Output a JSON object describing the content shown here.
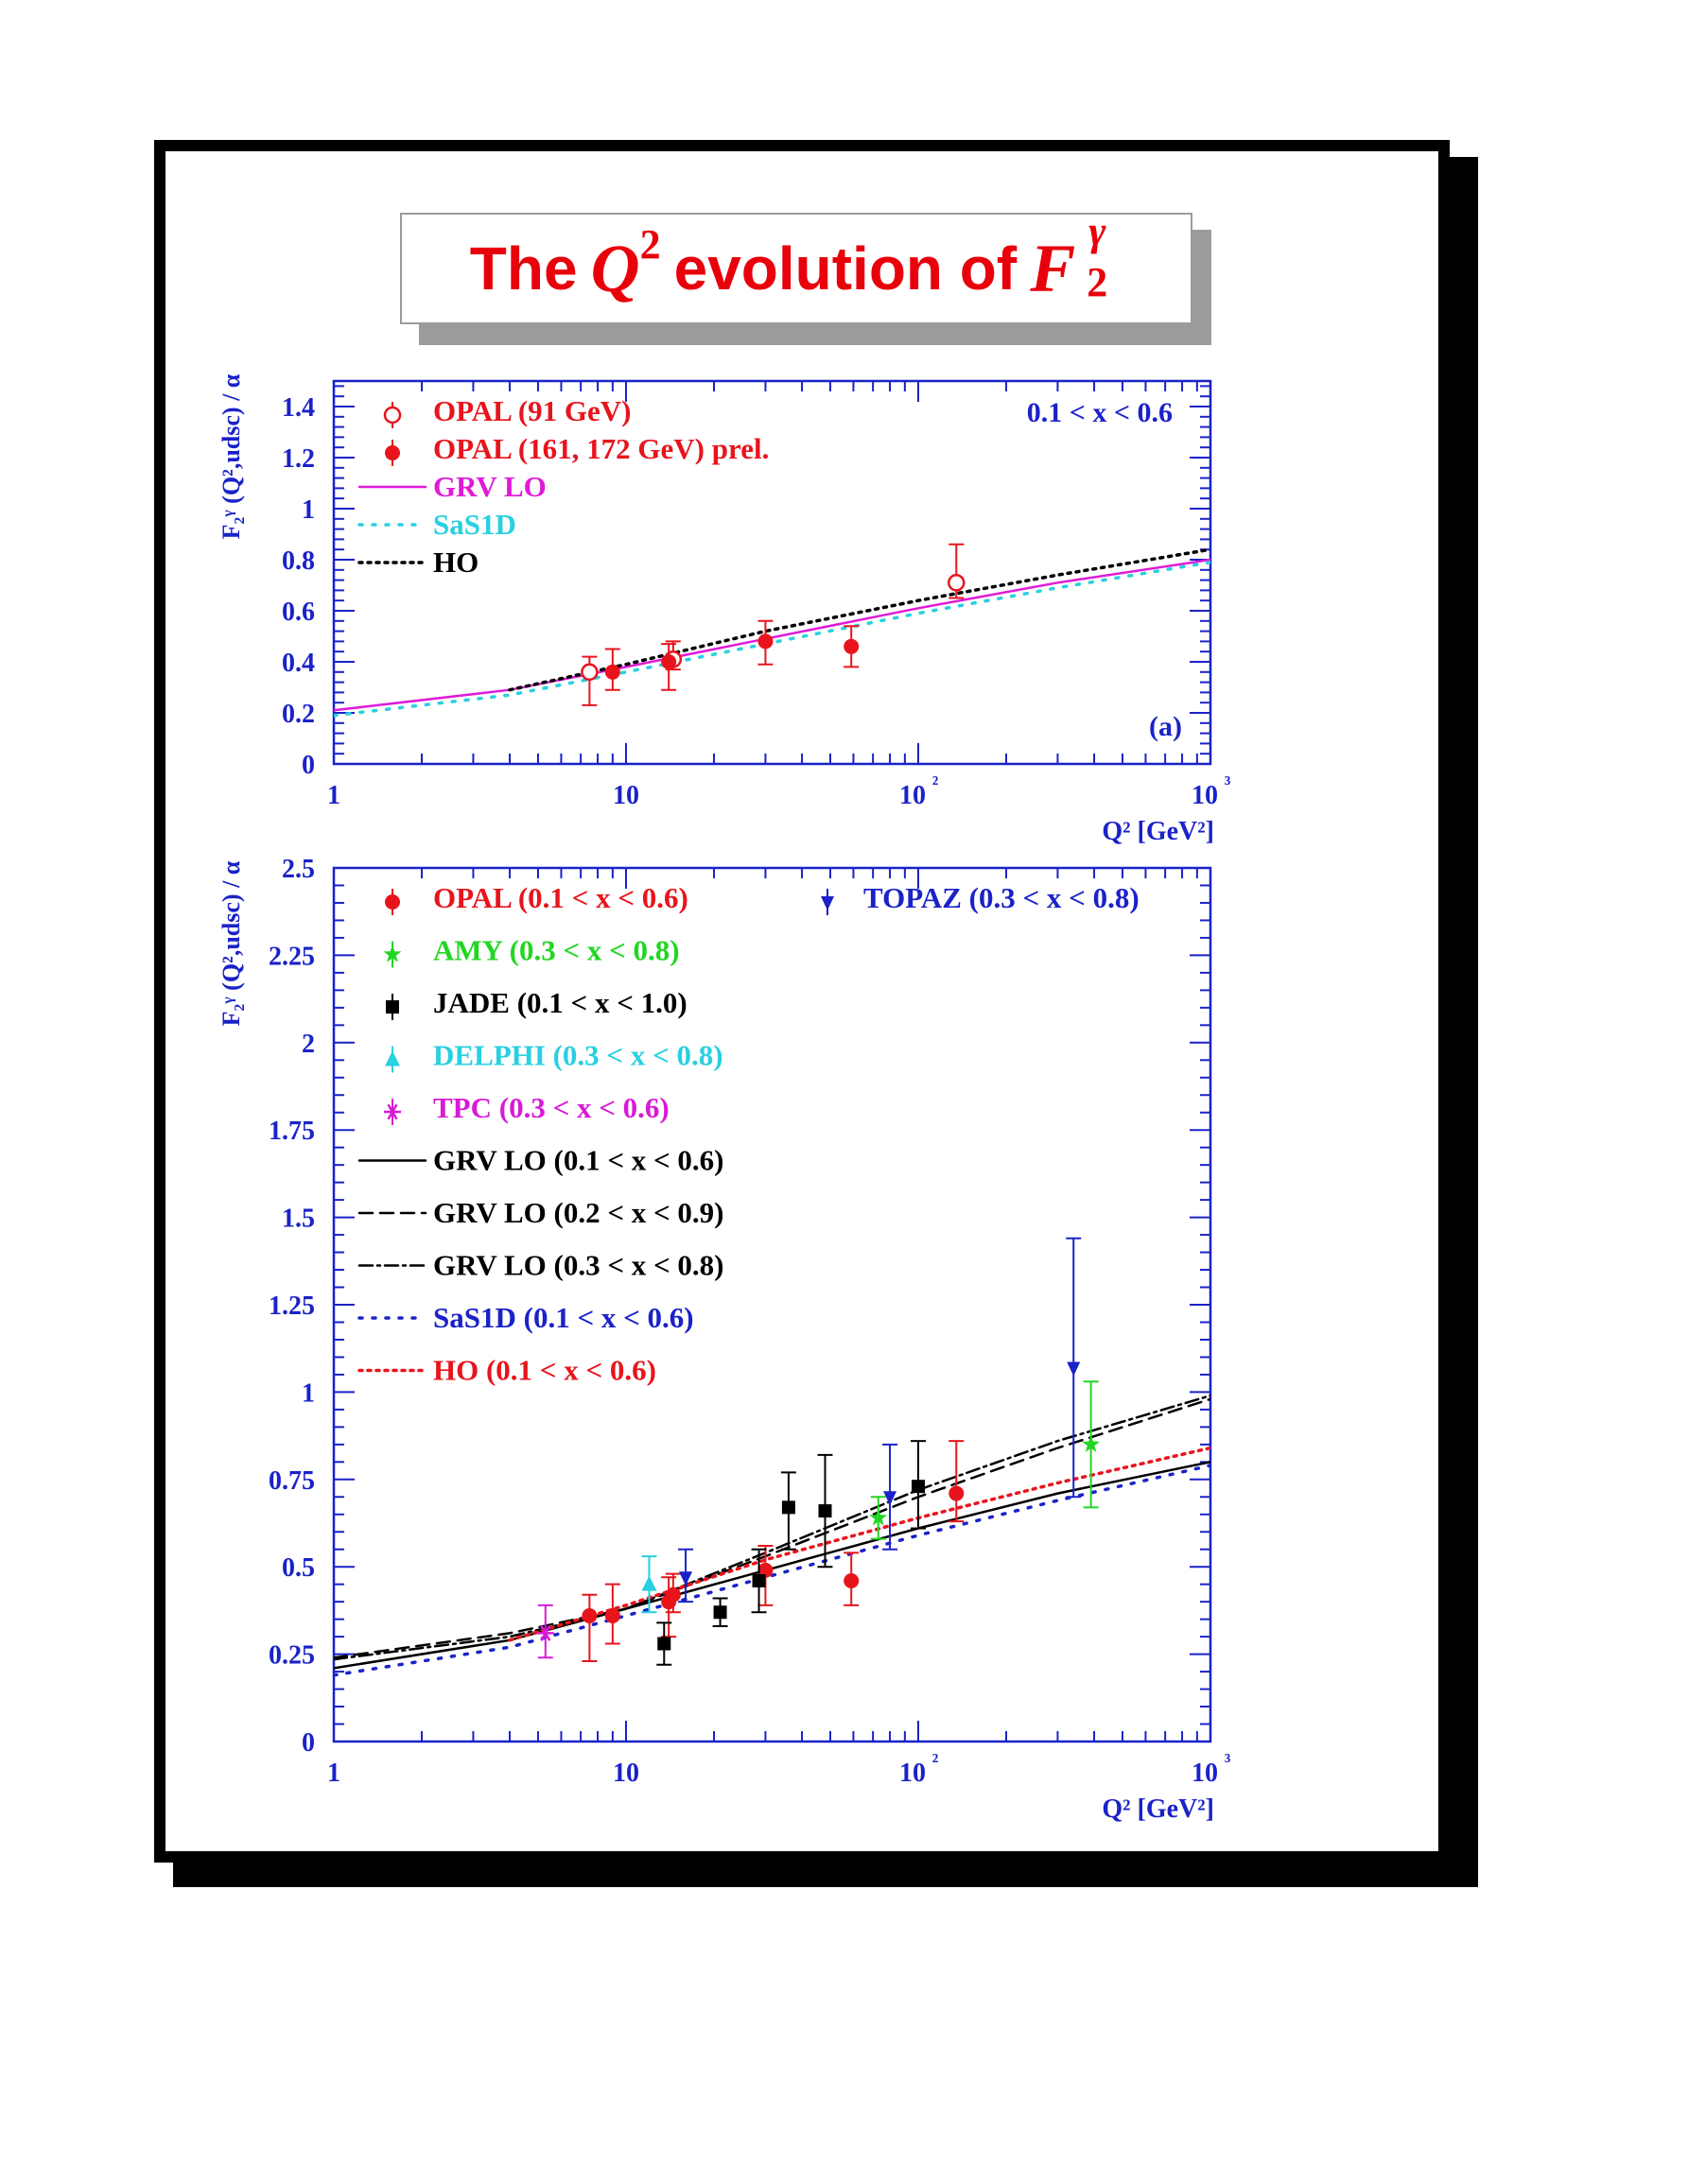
{
  "page": {
    "title_pre": "The",
    "title_q": "Q",
    "title_q_exp": "2",
    "title_mid": "evolution of",
    "title_f": "F",
    "title_f_sup": "γ",
    "title_f_sub": "2"
  },
  "colors": {
    "axis": "#1a22c8",
    "opal": "#e8141c",
    "grv": "#e01ad8",
    "sas": "#28d0e0",
    "ho_a": "#000000",
    "ho_b": "#e8141c",
    "amy": "#22d622",
    "jade": "#000000",
    "delphi": "#28d0e0",
    "tpc": "#d81ad8",
    "topaz": "#1a22c8",
    "sas_b": "#1a22c8"
  },
  "chart_data": [
    {
      "type": "scatter",
      "panel_label": "(a)",
      "annotation": "0.1 < x < 0.6",
      "xlabel": "Q² [GeV²]",
      "ylabel": "F₂ᵞ (Q²,udsc) / α",
      "xscale": "log",
      "xlim": [
        1,
        1000
      ],
      "ylim": [
        0,
        1.5
      ],
      "x_ticks": [
        "1",
        "10",
        "10²",
        "10³"
      ],
      "y_ticks": [
        "0",
        "0.2",
        "0.4",
        "0.6",
        "0.8",
        "1",
        "1.2",
        "1.4"
      ],
      "y_tick_values": [
        0,
        0.2,
        0.4,
        0.6,
        0.8,
        1.0,
        1.2,
        1.4
      ],
      "legend_position": "top-left",
      "series": [
        {
          "name": "OPAL (91 GeV)",
          "kind": "points",
          "marker": "open-circle",
          "color": "opal",
          "points": [
            {
              "x": 7.5,
              "y": 0.36,
              "lo": 0.23,
              "hi": 0.42
            },
            {
              "x": 14.5,
              "y": 0.41,
              "lo": 0.37,
              "hi": 0.48
            },
            {
              "x": 135,
              "y": 0.71,
              "lo": 0.65,
              "hi": 0.86
            }
          ]
        },
        {
          "name": "OPAL (161, 172 GeV) prel.",
          "kind": "points",
          "marker": "filled-circle",
          "color": "opal",
          "points": [
            {
              "x": 9,
              "y": 0.36,
              "lo": 0.29,
              "hi": 0.45
            },
            {
              "x": 14,
              "y": 0.4,
              "lo": 0.29,
              "hi": 0.47
            },
            {
              "x": 30,
              "y": 0.48,
              "lo": 0.39,
              "hi": 0.56
            },
            {
              "x": 59,
              "y": 0.46,
              "lo": 0.38,
              "hi": 0.54
            }
          ]
        },
        {
          "name": "GRV LO",
          "kind": "line",
          "style": "solid",
          "color": "grv",
          "points": [
            {
              "x": 1,
              "y": 0.21
            },
            {
              "x": 4,
              "y": 0.29
            },
            {
              "x": 10,
              "y": 0.38
            },
            {
              "x": 30,
              "y": 0.49
            },
            {
              "x": 100,
              "y": 0.61
            },
            {
              "x": 300,
              "y": 0.71
            },
            {
              "x": 1000,
              "y": 0.8
            }
          ]
        },
        {
          "name": "SaS1D",
          "kind": "line",
          "style": "dotted-sparse",
          "color": "sas",
          "points": [
            {
              "x": 1,
              "y": 0.19
            },
            {
              "x": 4,
              "y": 0.27
            },
            {
              "x": 10,
              "y": 0.36
            },
            {
              "x": 30,
              "y": 0.47
            },
            {
              "x": 100,
              "y": 0.59
            },
            {
              "x": 300,
              "y": 0.69
            },
            {
              "x": 1000,
              "y": 0.79
            }
          ]
        },
        {
          "name": "HO",
          "kind": "line",
          "style": "dotted-dense",
          "color": "ho_a",
          "points": [
            {
              "x": 4,
              "y": 0.29
            },
            {
              "x": 10,
              "y": 0.39
            },
            {
              "x": 30,
              "y": 0.52
            },
            {
              "x": 100,
              "y": 0.64
            },
            {
              "x": 300,
              "y": 0.74
            },
            {
              "x": 1000,
              "y": 0.84
            }
          ]
        }
      ]
    },
    {
      "type": "scatter",
      "panel_label": "",
      "annotation": "",
      "xlabel": "Q² [GeV²]",
      "ylabel": "F₂ᵞ (Q²,udsc) / α",
      "xscale": "log",
      "xlim": [
        1,
        1000
      ],
      "ylim": [
        0,
        2.5
      ],
      "x_ticks": [
        "1",
        "10",
        "10²",
        "10³"
      ],
      "y_ticks": [
        "0",
        "0.25",
        "0.5",
        "0.75",
        "1",
        "1.25",
        "1.5",
        "1.75",
        "2",
        "2.25",
        "2.5"
      ],
      "y_tick_values": [
        0,
        0.25,
        0.5,
        0.75,
        1.0,
        1.25,
        1.5,
        1.75,
        2.0,
        2.25,
        2.5
      ],
      "legend_position": "top-left",
      "series": [
        {
          "name": "OPAL (0.1 < x < 0.6)",
          "kind": "points",
          "marker": "filled-circle",
          "color": "opal",
          "points": [
            {
              "x": 7.5,
              "y": 0.36,
              "lo": 0.23,
              "hi": 0.42
            },
            {
              "x": 9,
              "y": 0.36,
              "lo": 0.28,
              "hi": 0.45
            },
            {
              "x": 14,
              "y": 0.4,
              "lo": 0.3,
              "hi": 0.47
            },
            {
              "x": 14.5,
              "y": 0.42,
              "lo": 0.37,
              "hi": 0.48
            },
            {
              "x": 30,
              "y": 0.49,
              "lo": 0.39,
              "hi": 0.56
            },
            {
              "x": 59,
              "y": 0.46,
              "lo": 0.39,
              "hi": 0.54
            },
            {
              "x": 135,
              "y": 0.71,
              "lo": 0.63,
              "hi": 0.86
            }
          ]
        },
        {
          "name": "AMY (0.3 < x < 0.8)",
          "kind": "points",
          "marker": "star",
          "color": "amy",
          "points": [
            {
              "x": 73,
              "y": 0.64,
              "lo": 0.58,
              "hi": 0.7
            },
            {
              "x": 390,
              "y": 0.85,
              "lo": 0.67,
              "hi": 1.03
            }
          ]
        },
        {
          "name": "JADE (0.1 < x < 1.0)",
          "kind": "points",
          "marker": "filled-square",
          "color": "jade",
          "points": [
            {
              "x": 13.5,
              "y": 0.28,
              "lo": 0.22,
              "hi": 0.34
            },
            {
              "x": 21,
              "y": 0.37,
              "lo": 0.33,
              "hi": 0.41
            },
            {
              "x": 28.5,
              "y": 0.46,
              "lo": 0.37,
              "hi": 0.55
            },
            {
              "x": 36,
              "y": 0.67,
              "lo": 0.55,
              "hi": 0.77
            },
            {
              "x": 48,
              "y": 0.66,
              "lo": 0.5,
              "hi": 0.82
            },
            {
              "x": 100,
              "y": 0.73,
              "lo": 0.61,
              "hi": 0.86
            }
          ]
        },
        {
          "name": "DELPHI (0.3 < x < 0.8)",
          "kind": "points",
          "marker": "filled-triangle",
          "color": "delphi",
          "points": [
            {
              "x": 12,
              "y": 0.45,
              "lo": 0.37,
              "hi": 0.53
            }
          ]
        },
        {
          "name": "TPC (0.3 < x < 0.6)",
          "kind": "points",
          "marker": "asterisk",
          "color": "tpc",
          "points": [
            {
              "x": 5.3,
              "y": 0.31,
              "lo": 0.24,
              "hi": 0.39
            }
          ]
        },
        {
          "name": "TOPAZ (0.3 < x < 0.8)",
          "kind": "points",
          "marker": "down-triangle",
          "color": "topaz",
          "points": [
            {
              "x": 16,
              "y": 0.47,
              "lo": 0.4,
              "hi": 0.55
            },
            {
              "x": 80,
              "y": 0.7,
              "lo": 0.55,
              "hi": 0.85
            },
            {
              "x": 340,
              "y": 1.07,
              "lo": 0.7,
              "hi": 1.44
            }
          ]
        },
        {
          "name": "GRV LO (0.1 < x < 0.6)",
          "kind": "line",
          "style": "solid",
          "color": "jade",
          "points": [
            {
              "x": 1,
              "y": 0.21
            },
            {
              "x": 4,
              "y": 0.29
            },
            {
              "x": 10,
              "y": 0.38
            },
            {
              "x": 30,
              "y": 0.49
            },
            {
              "x": 100,
              "y": 0.61
            },
            {
              "x": 300,
              "y": 0.71
            },
            {
              "x": 1000,
              "y": 0.8
            }
          ]
        },
        {
          "name": "GRV LO (0.2 < x < 0.9)",
          "kind": "line",
          "style": "dashed",
          "color": "jade",
          "points": [
            {
              "x": 1,
              "y": 0.24
            },
            {
              "x": 4,
              "y": 0.31
            },
            {
              "x": 10,
              "y": 0.38
            },
            {
              "x": 30,
              "y": 0.53
            },
            {
              "x": 100,
              "y": 0.7
            },
            {
              "x": 300,
              "y": 0.84
            },
            {
              "x": 1000,
              "y": 0.98
            }
          ]
        },
        {
          "name": "GRV LO (0.3 < x < 0.8)",
          "kind": "line",
          "style": "dashdot",
          "color": "jade",
          "points": [
            {
              "x": 1,
              "y": 0.235
            },
            {
              "x": 4,
              "y": 0.3
            },
            {
              "x": 10,
              "y": 0.38
            },
            {
              "x": 30,
              "y": 0.54
            },
            {
              "x": 100,
              "y": 0.72
            },
            {
              "x": 300,
              "y": 0.86
            },
            {
              "x": 1000,
              "y": 0.99
            }
          ]
        },
        {
          "name": "SaS1D (0.1 < x < 0.6)",
          "kind": "line",
          "style": "dotted-sparse",
          "color": "sas_b",
          "points": [
            {
              "x": 1,
              "y": 0.19
            },
            {
              "x": 4,
              "y": 0.27
            },
            {
              "x": 10,
              "y": 0.36
            },
            {
              "x": 30,
              "y": 0.47
            },
            {
              "x": 100,
              "y": 0.59
            },
            {
              "x": 300,
              "y": 0.69
            },
            {
              "x": 1000,
              "y": 0.79
            }
          ]
        },
        {
          "name": "HO (0.1 < x < 0.6)",
          "kind": "line",
          "style": "dotted-dense",
          "color": "ho_b",
          "points": [
            {
              "x": 4,
              "y": 0.29
            },
            {
              "x": 10,
              "y": 0.39
            },
            {
              "x": 30,
              "y": 0.52
            },
            {
              "x": 100,
              "y": 0.64
            },
            {
              "x": 300,
              "y": 0.74
            },
            {
              "x": 1000,
              "y": 0.84
            }
          ]
        }
      ]
    }
  ]
}
